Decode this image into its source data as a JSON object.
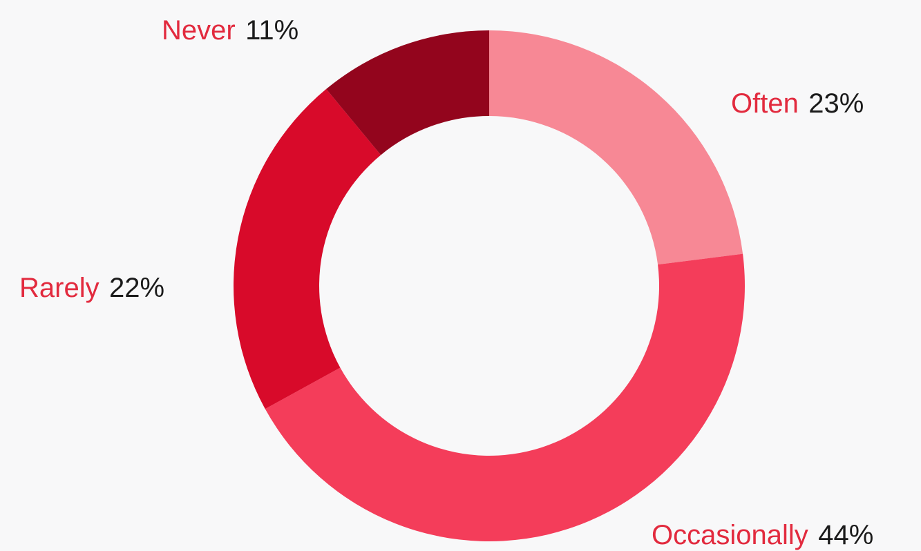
{
  "chart_data": {
    "type": "pie",
    "variant": "donut",
    "title": "",
    "start_angle": "12 o'clock, clockwise",
    "slices": [
      {
        "label": "Often",
        "value": 23,
        "value_label": "23%",
        "color": "#f78895"
      },
      {
        "label": "Occasionally",
        "value": 44,
        "value_label": "44%",
        "color": "#f43d5a"
      },
      {
        "label": "Rarely",
        "value": 22,
        "value_label": "22%",
        "color": "#d80a2a"
      },
      {
        "label": "Never",
        "value": 11,
        "value_label": "11%",
        "color": "#93051d"
      }
    ],
    "label_color": "#e22a3e",
    "value_color": "#1b1b1b",
    "background": "#f8f8f9"
  }
}
